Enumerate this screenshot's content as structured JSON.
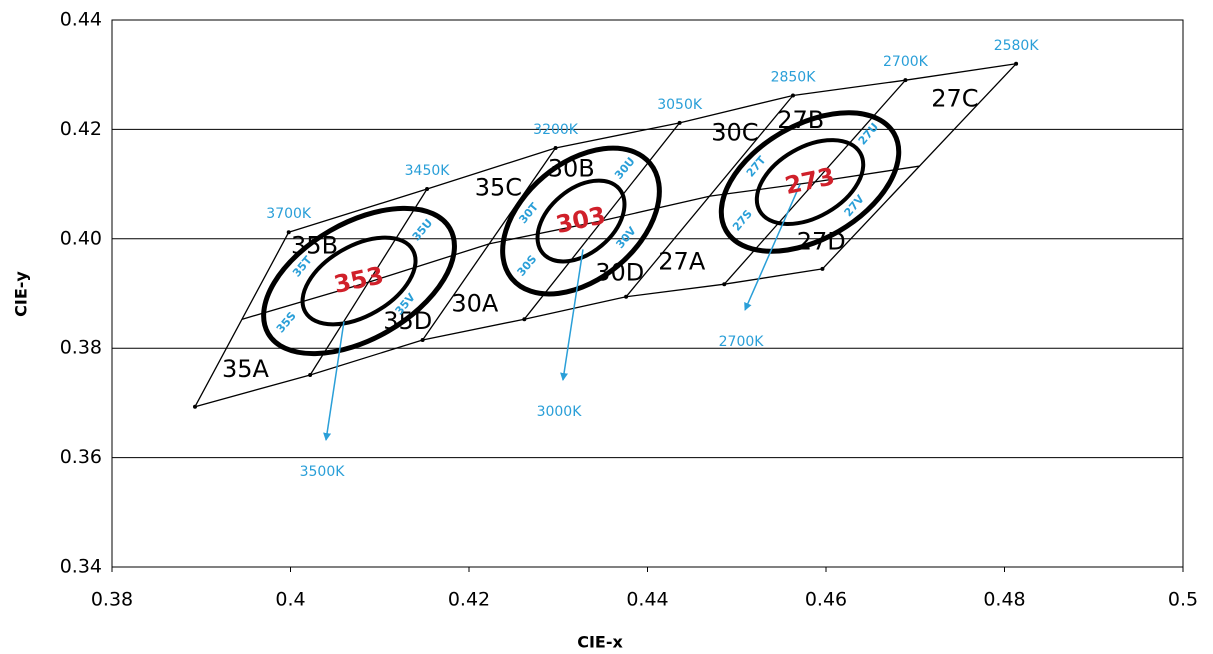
{
  "chart_data": {
    "type": "binning",
    "xlabel": "CIE-x",
    "ylabel": "CIE-y",
    "xlim": [
      0.38,
      0.5
    ],
    "ylim": [
      0.34,
      0.44
    ],
    "xticks": [
      0.38,
      0.4,
      0.42,
      0.44,
      0.46,
      0.48,
      0.5
    ],
    "yticks": [
      0.34,
      0.36,
      0.38,
      {
        "value": 0.4,
        "label": "0.40"
      },
      0.42,
      0.44
    ],
    "grid": true,
    "line_color": "#000000",
    "label_color": "#2a9fd8",
    "center_color": "#d0202a",
    "bin_lines": {
      "top": {
        "x": [
          0.3998,
          0.4153,
          0.4297,
          0.4436,
          0.4563,
          0.4689,
          0.4813
        ],
        "y": [
          0.4012,
          0.4091,
          0.4166,
          0.4212,
          0.4262,
          0.429,
          0.432
        ]
      },
      "middle": {
        "x": [
          0.3946,
          0.4088,
          0.4223,
          0.4349,
          0.447,
          0.4588,
          0.4705
        ],
        "y": [
          0.3853,
          0.3921,
          0.3991,
          0.4033,
          0.4078,
          0.4104,
          0.4133
        ]
      },
      "bottom": {
        "x": [
          0.3893,
          0.4022,
          0.4148,
          0.4262,
          0.4376,
          0.4486,
          0.4596
        ],
        "y": [
          0.3693,
          0.3751,
          0.3815,
          0.3853,
          0.3894,
          0.3917,
          0.3945
        ]
      }
    },
    "cct_labels": [
      "3700K",
      "3450K",
      "3200K",
      "3050K",
      "2850K",
      "2700K",
      "2580K"
    ],
    "blocks": [
      {
        "name": "353",
        "bins": [
          "35A",
          "35B",
          "35C",
          "35D"
        ],
        "sub_bins": [
          "35S",
          "35T",
          "35U",
          "35V"
        ],
        "center": [
          0.40768,
          0.39229
        ],
        "outer": [
          0.01176,
          0.0065
        ],
        "inner": [
          0.00695,
          0.00392
        ],
        "angle": 30,
        "arrow": {
          "from": [
            0.40599,
            0.38489
          ],
          "to": [
            0.40398,
            0.36322
          ],
          "label": "3500K"
        }
      },
      {
        "name": "303",
        "bins": [
          "30A",
          "30B",
          "30C",
          "30D"
        ],
        "sub_bins": [
          "30S",
          "30T",
          "30U",
          "30V"
        ],
        "center": [
          0.43255,
          0.40325
        ],
        "outer": [
          0.01008,
          0.0065
        ],
        "inner": [
          0.0056,
          0.00359
        ],
        "angle": 40,
        "arrow": {
          "from": [
            0.43277,
            0.39806
          ],
          "to": [
            0.43053,
            0.37419
          ],
          "label": "3000K"
        }
      },
      {
        "name": "273",
        "bins": [
          "27A",
          "27B",
          "27C",
          "27D"
        ],
        "sub_bins": [
          "27S",
          "27T",
          "27U",
          "27V"
        ],
        "center": [
          0.45821,
          0.41038
        ],
        "outer": [
          0.01087,
          0.00639
        ],
        "inner": [
          0.0065,
          0.00392
        ],
        "angle": 30,
        "arrow": {
          "from": [
            0.45709,
            0.40996
          ],
          "to": [
            0.45093,
            0.38699
          ],
          "label": "2700K"
        }
      }
    ]
  }
}
